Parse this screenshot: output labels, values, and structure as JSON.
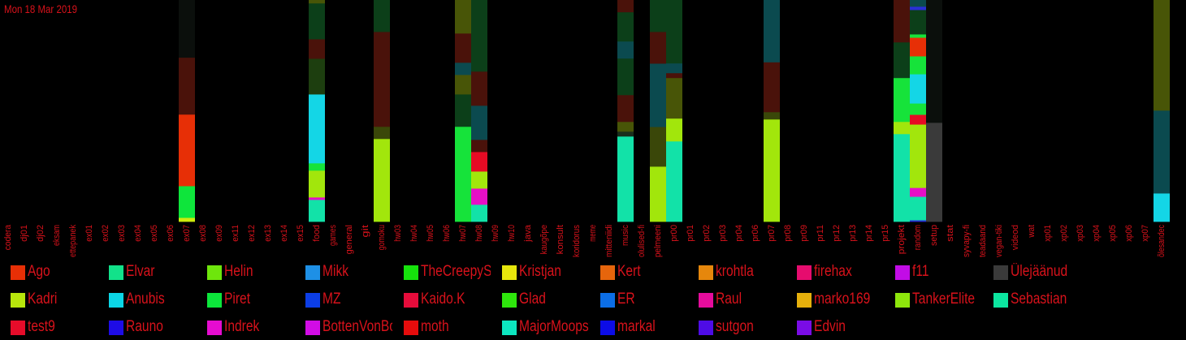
{
  "date_label": "Mon 18 Mar 2019",
  "chart_data": {
    "type": "bar",
    "stacked": true,
    "ylim": [
      0,
      1
    ],
    "categories": [
      "codera",
      "dj01",
      "dj02",
      "eksam",
      "ettepanek",
      "ex01",
      "ex02",
      "ex03",
      "ex04",
      "ex05",
      "ex06",
      "ex07",
      "ex08",
      "ex09",
      "ex11",
      "ex12",
      "ex13",
      "ex14",
      "ex15",
      "food",
      "games",
      "general",
      "git",
      "gomoku",
      "hw03",
      "hw04",
      "hw05",
      "hw06",
      "hw07",
      "hw08",
      "hw09",
      "hw10",
      "java",
      "kaugõpe",
      "konsult",
      "koridorus",
      "meme",
      "mitteniidi",
      "music",
      "olulised-fi",
      "pelmeeni",
      "pr00",
      "pr01",
      "pr02",
      "pr03",
      "pr04",
      "pr06",
      "pr07",
      "pr08",
      "pr09",
      "pr11",
      "pr12",
      "pr13",
      "pr14",
      "pr15",
      "projekt",
      "random",
      "setup",
      "stat",
      "syvapy-fi",
      "teadaand",
      "vegan-tiki",
      "videod",
      "wat",
      "xp01",
      "xp02",
      "xp03",
      "xp04",
      "xp05",
      "xp06",
      "xp07",
      "õlesandec"
    ],
    "stacks": {
      "ex07": [
        [
          "#cdeb0d",
          0.018
        ],
        [
          "#0ee53b",
          0.143
        ],
        [
          "#e72f06",
          0.323
        ],
        [
          "#4a120a",
          0.257
        ],
        [
          "#0b0f0c",
          0.259
        ]
      ],
      "food": [
        [
          "#12e2a8",
          0.099
        ],
        [
          "#e60fc6",
          0.011
        ],
        [
          "#a2e60c",
          0.121
        ],
        [
          "#16e33a",
          0.033
        ],
        [
          "#14d6e6",
          0.311
        ],
        [
          "#1d3e0f",
          0.161
        ],
        [
          "#4a120a",
          0.088
        ],
        [
          "#0c3f19",
          0.162
        ],
        [
          "#485507",
          0.015
        ]
      ],
      "gomoku": [
        [
          "#a2e60c",
          0.374
        ],
        [
          "#3a4709",
          0.055
        ],
        [
          "#4a120a",
          0.428
        ],
        [
          "#0c3f19",
          0.143
        ]
      ],
      "hw07": [
        [
          "#16e33a",
          0.429
        ],
        [
          "#0c3f19",
          0.146
        ],
        [
          "#485507",
          0.088
        ],
        [
          "#0b4a4f",
          0.055
        ],
        [
          "#4a120a",
          0.132
        ],
        [
          "#485507",
          0.15
        ]
      ],
      "hw08": [
        [
          "#12e2a8",
          0.077
        ],
        [
          "#e60fc6",
          0.073
        ],
        [
          "#a2e60c",
          0.077
        ],
        [
          "#e60b24",
          0.088
        ],
        [
          "#4a120a",
          0.055
        ],
        [
          "#0b4a4f",
          0.154
        ],
        [
          "#4a120a",
          0.154
        ],
        [
          "#0c3f19",
          0.322
        ],
        [
          "#0c3f19",
          0.0
        ]
      ],
      "music": [
        [
          "#12e2a8",
          0.385
        ],
        [
          "#1a2e1c",
          0.022
        ],
        [
          "#485507",
          0.044
        ],
        [
          "#4a120a",
          0.121
        ],
        [
          "#0c3f19",
          0.165
        ],
        [
          "#0b4a4f",
          0.077
        ],
        [
          "#0c3f19",
          0.132
        ],
        [
          "#4a120a",
          0.054
        ]
      ],
      "pelmeeni": [
        [
          "#a2e60c",
          0.249
        ],
        [
          "#3a4709",
          0.179
        ],
        [
          "#0b4a4f",
          0.286
        ],
        [
          "#4a120a",
          0.143
        ],
        [
          "#0c3f19",
          0.143
        ]
      ],
      "pr00": [
        [
          "#12e2a8",
          0.363
        ],
        [
          "#a2e60c",
          0.103
        ],
        [
          "#485507",
          0.183
        ],
        [
          "#4a120a",
          0.022
        ],
        [
          "#0b4a4f",
          0.044
        ],
        [
          "#0c3f19",
          0.285
        ]
      ],
      "pr07": [
        [
          "#a2e60c",
          0.462
        ],
        [
          "#3a4709",
          0.033
        ],
        [
          "#4a120a",
          0.225
        ],
        [
          "#0b4a4f",
          0.28
        ]
      ],
      "projekt": [
        [
          "#12e2a8",
          0.396
        ],
        [
          "#a2e60c",
          0.055
        ],
        [
          "#16e33a",
          0.198
        ],
        [
          "#0c3f19",
          0.161
        ],
        [
          "#4a120a",
          0.19
        ]
      ],
      "random": [
        [
          "#2a2fd9",
          0.007
        ],
        [
          "#12e2a8",
          0.106
        ],
        [
          "#e60fc6",
          0.04
        ],
        [
          "#a2e60c",
          0.286
        ],
        [
          "#e60b24",
          0.044
        ],
        [
          "#16e33a",
          0.051
        ],
        [
          "#14d6e6",
          0.132
        ],
        [
          "#16e33a",
          0.081
        ],
        [
          "#e72f06",
          0.084
        ],
        [
          "#16e33a",
          0.015
        ],
        [
          "#0c3f19",
          0.11
        ],
        [
          "#2a2fd9",
          0.015
        ],
        [
          "#0b4a4f",
          0.029
        ]
      ],
      "setup": [
        [
          "#3a3a3a",
          0.447
        ],
        [
          "#0b0f0c",
          0.553
        ]
      ],
      "õlesandec": [
        [
          "#14d6e6",
          0.128
        ],
        [
          "#0b4a4f",
          0.374
        ],
        [
          "#485507",
          0.498
        ]
      ]
    },
    "legend": [
      [
        "Ago",
        "#e72f06"
      ],
      [
        "Elvar",
        "#12e28a"
      ],
      [
        "Helin",
        "#6ee60c"
      ],
      [
        "Mikk",
        "#1e90e6"
      ],
      [
        "TheCreepySh",
        "#16e30c"
      ],
      [
        "Kristjan",
        "#e6e60c"
      ],
      [
        "Kert",
        "#e6650c"
      ],
      [
        "krohtla",
        "#e6870c"
      ],
      [
        "firehax",
        "#e60c6e"
      ],
      [
        "f11",
        "#c20ce6"
      ],
      [
        "Ülejäänud",
        "#3a3a3a"
      ],
      [
        "Kadri",
        "#b8e60c"
      ],
      [
        "Anubis",
        "#0cd6e6"
      ],
      [
        "Piret",
        "#0ce63b"
      ],
      [
        "MZ",
        "#0c3ee6"
      ],
      [
        "Kaido.K",
        "#e60c3b"
      ],
      [
        "Glad",
        "#2ee60c"
      ],
      [
        "ER",
        "#0c6ee6"
      ],
      [
        "Raul",
        "#e60c9c"
      ],
      [
        "marko169",
        "#e6b00c"
      ],
      [
        "TankerElite",
        "#8ee60c"
      ],
      [
        "Sebastian",
        "#0ce6a0"
      ],
      [
        "test9",
        "#e60c2a"
      ],
      [
        "Rauno",
        "#1e0ce6"
      ],
      [
        "Indrek",
        "#e60cd0"
      ],
      [
        "BottenVonBot",
        "#d20ce6"
      ],
      [
        "moth",
        "#e60c0c"
      ],
      [
        "MajorMoopsy",
        "#0ce6c0"
      ],
      [
        "markal",
        "#0c0ce6"
      ],
      [
        "sutgon",
        "#4e0ce6"
      ],
      [
        "Edvin",
        "#7a0ce6"
      ]
    ]
  }
}
